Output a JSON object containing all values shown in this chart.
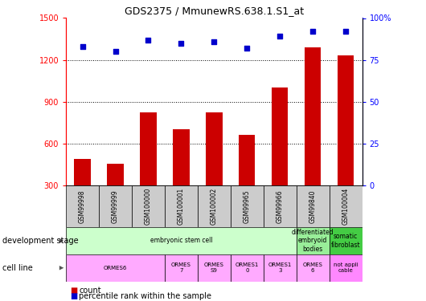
{
  "title": "GDS2375 / MmunewRS.638.1.S1_at",
  "samples": [
    "GSM99998",
    "GSM99999",
    "GSM100000",
    "GSM100001",
    "GSM100002",
    "GSM99965",
    "GSM99966",
    "GSM99840",
    "GSM100004"
  ],
  "counts": [
    490,
    455,
    820,
    700,
    820,
    660,
    1000,
    1290,
    1230
  ],
  "percentiles": [
    83,
    80,
    87,
    85,
    86,
    82,
    89,
    92,
    92
  ],
  "ylim_left": [
    300,
    1500
  ],
  "ylim_right": [
    0,
    100
  ],
  "yticks_left": [
    300,
    600,
    900,
    1200,
    1500
  ],
  "yticks_right": [
    0,
    25,
    50,
    75,
    100
  ],
  "bar_color": "#cc0000",
  "dot_color": "#0000cc",
  "sample_bg_color": "#cccccc",
  "dev_stage_groups": [
    {
      "label": "embryonic stem cell",
      "start": 0,
      "end": 7,
      "color": "#ccffcc"
    },
    {
      "label": "differentiated\nembryoid\nbodies",
      "start": 7,
      "end": 8,
      "color": "#99ee99"
    },
    {
      "label": "somatic\nfibroblast",
      "start": 8,
      "end": 9,
      "color": "#44cc44"
    }
  ],
  "cell_line_groups": [
    {
      "label": "ORMES6",
      "start": 0,
      "end": 3,
      "color": "#ffaaff"
    },
    {
      "label": "ORMES\n7",
      "start": 3,
      "end": 4,
      "color": "#ffaaff"
    },
    {
      "label": "ORMES\nS9",
      "start": 4,
      "end": 5,
      "color": "#ffaaff"
    },
    {
      "label": "ORMES1\n0",
      "start": 5,
      "end": 6,
      "color": "#ffaaff"
    },
    {
      "label": "ORMES1\n3",
      "start": 6,
      "end": 7,
      "color": "#ffaaff"
    },
    {
      "label": "ORMES\n6",
      "start": 7,
      "end": 8,
      "color": "#ffaaff"
    },
    {
      "label": "not appli\ncable",
      "start": 8,
      "end": 9,
      "color": "#ff88ff"
    }
  ],
  "row_labels": [
    "development stage",
    "cell line"
  ],
  "legend_count_color": "#cc0000",
  "legend_pct_color": "#0000cc"
}
